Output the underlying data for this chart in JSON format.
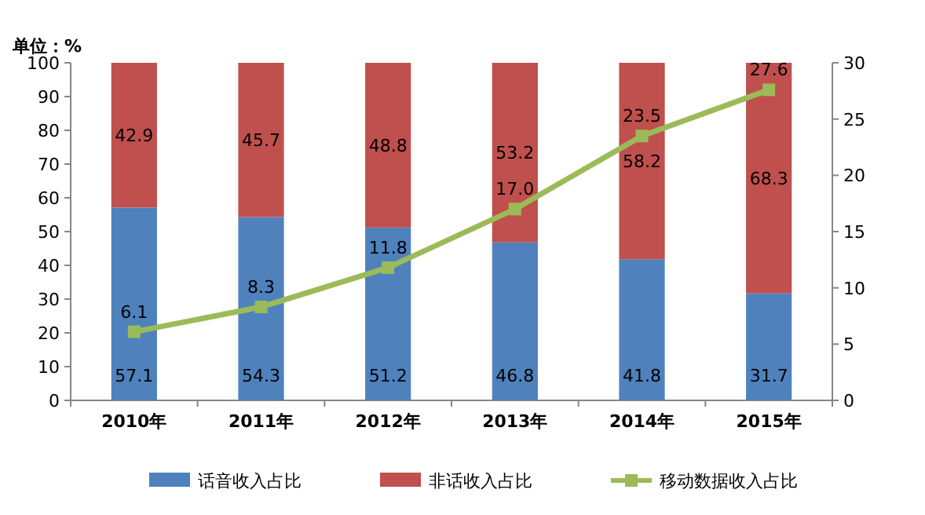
{
  "chart_data": {
    "type": "bar",
    "stacked": true,
    "ylabel": "单位：%",
    "categories": [
      "2010年",
      "2011年",
      "2012年",
      "2013年",
      "2014年",
      "2015年"
    ],
    "ylim": [
      0,
      100
    ],
    "yticks": [
      0,
      10,
      20,
      30,
      40,
      50,
      60,
      70,
      80,
      90,
      100
    ],
    "y2lim": [
      0,
      30
    ],
    "y2ticks": [
      0,
      5,
      10,
      15,
      20,
      25,
      30
    ],
    "grid": false,
    "legend": "bottom",
    "series": [
      {
        "name": "话音收入占比",
        "color": "#4f81bd",
        "values": [
          57.1,
          54.3,
          51.2,
          46.8,
          41.8,
          31.7
        ],
        "value_labels": [
          "57.1",
          "54.3",
          "51.2",
          "46.8",
          "41.8",
          "31.7"
        ]
      },
      {
        "name": "非话收入占比",
        "color": "#c0504d",
        "values": [
          42.9,
          45.7,
          48.8,
          53.2,
          58.2,
          68.3
        ],
        "value_labels": [
          "42.9",
          "45.7",
          "48.8",
          "53.2",
          "58.2",
          "68.3"
        ]
      },
      {
        "name": "移动数据收入占比",
        "type": "line",
        "axis": "y2",
        "marker": "square",
        "line_style": "solid",
        "color": "#9bbb59",
        "values": [
          6.1,
          8.3,
          11.8,
          17.0,
          23.5,
          27.6
        ],
        "value_labels": [
          "6.1",
          "8.3",
          "11.8",
          "17.0",
          "23.5",
          "27.6"
        ]
      }
    ]
  }
}
